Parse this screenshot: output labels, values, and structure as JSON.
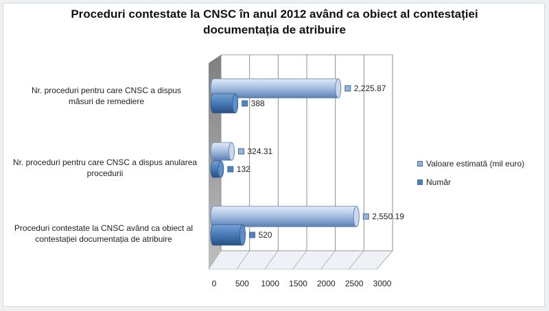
{
  "chart_data": {
    "type": "bar",
    "orientation": "horizontal",
    "style": "3d-cylinder",
    "title": [
      "Proceduri contestate la CNSC în anul 2012 având ca obiect al contestației",
      "documentația de atribuire"
    ],
    "categories": [
      [
        "Nr. proceduri pentru care CNSC a dispus",
        "măsuri de remediere"
      ],
      [
        "Nr. proceduri pentru care CNSC a dispus anularea",
        "procedurii"
      ],
      [
        "Proceduri contestate la CNSC având ca obiect al",
        "contestației documentația de atribuire"
      ]
    ],
    "series": [
      {
        "name": "Valoare estimată (mil euro)",
        "values": [
          2225.87,
          324.31,
          2550.19
        ],
        "labels": [
          "2,225.87",
          "324.31",
          "2,550.19"
        ],
        "color": "#95b3d7"
      },
      {
        "name": "Număr",
        "values": [
          388,
          132,
          520
        ],
        "labels": [
          "388",
          "132",
          "520"
        ],
        "color": "#4f81bd"
      }
    ],
    "xlim": [
      0,
      3000
    ],
    "xticks": [
      "0",
      "500",
      "1000",
      "1500",
      "2000",
      "2500",
      "3000"
    ],
    "grid": true,
    "legend_position": "right"
  }
}
